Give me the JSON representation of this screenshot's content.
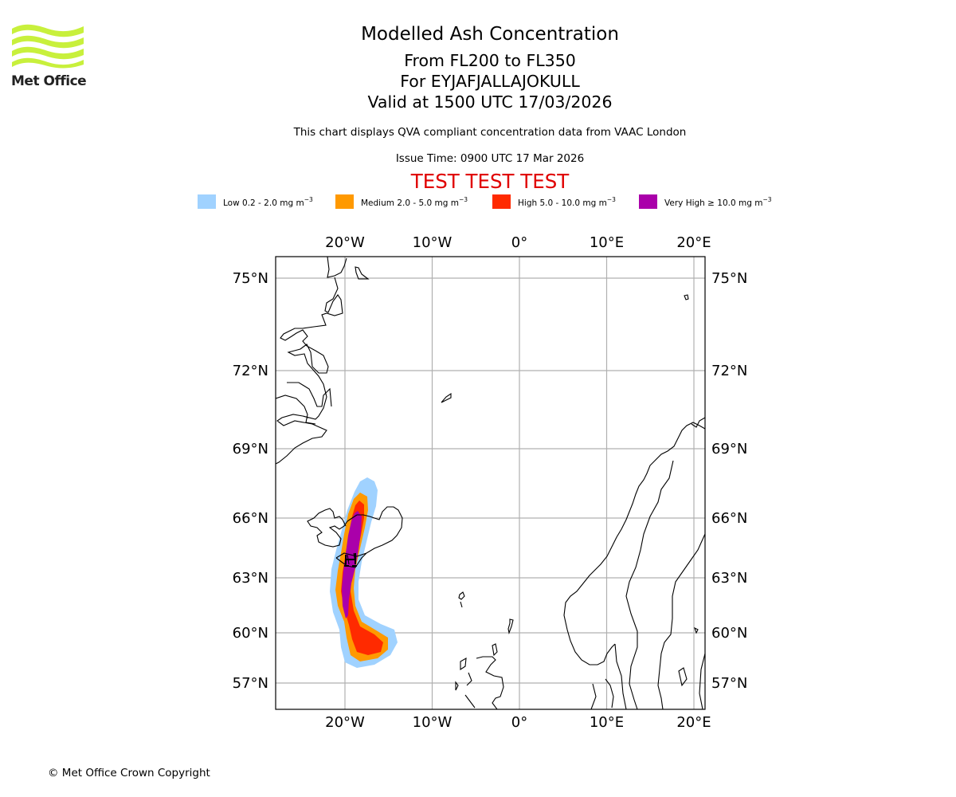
{
  "logo": {
    "name": "Met Office",
    "color": "#c8f03c"
  },
  "header": {
    "title": "Modelled Ash Concentration",
    "levels": "From FL200 to FL350",
    "volcano": "For EYJAFJALLAJOKULL",
    "valid": "Valid at 1500 UTC 17/03/2026",
    "note": "This chart displays QVA compliant concentration data from VAAC London",
    "issue_time": "Issue Time: 0900 UTC 17 Mar 2026",
    "test_banner": "TEST TEST TEST",
    "test_color": "#e00000"
  },
  "legend": [
    {
      "label": "Low 0.2 - 2.0 mg m",
      "unit_exp": "−3",
      "color": "#a0d2ff"
    },
    {
      "label": "Medium 2.0 - 5.0 mg m",
      "unit_exp": "−3",
      "color": "#ff9900"
    },
    {
      "label": "High 5.0 - 10.0 mg m",
      "unit_exp": "−3",
      "color": "#ff2a00"
    },
    {
      "label": "Very High  ≥  10.0 mg m",
      "unit_exp": "−3",
      "color": "#aa00aa"
    }
  ],
  "map": {
    "lon_range": [
      -28,
      21
    ],
    "lat_range": [
      56,
      76
    ],
    "lon_ticks": [
      {
        "value": -20,
        "label": "20°W"
      },
      {
        "value": -10,
        "label": "10°W"
      },
      {
        "value": 0,
        "label": "0°"
      },
      {
        "value": 10,
        "label": "10°E"
      },
      {
        "value": 20,
        "label": "20°E"
      }
    ],
    "lat_ticks": [
      {
        "value": 75,
        "label": "75°N"
      },
      {
        "value": 72,
        "label": "72°N"
      },
      {
        "value": 69,
        "label": "69°N"
      },
      {
        "value": 66,
        "label": "66°N"
      },
      {
        "value": 63,
        "label": "63°N"
      },
      {
        "value": 60,
        "label": "60°N"
      },
      {
        "value": 57,
        "label": "57°N"
      }
    ],
    "gridline_color": "#b0b0b0",
    "volcano_location": {
      "lon": -19.6,
      "lat": 63.6
    },
    "plume_extent": {
      "low": {
        "lon": [
          -21.0,
          -14.0
        ],
        "lat": [
          58.7,
          67.8
        ]
      },
      "very_high": {
        "lon": [
          -20.5,
          -18.0
        ],
        "lat": [
          61.0,
          66.0
        ]
      }
    }
  },
  "footer": {
    "copyright": "© Met Office Crown Copyright"
  }
}
